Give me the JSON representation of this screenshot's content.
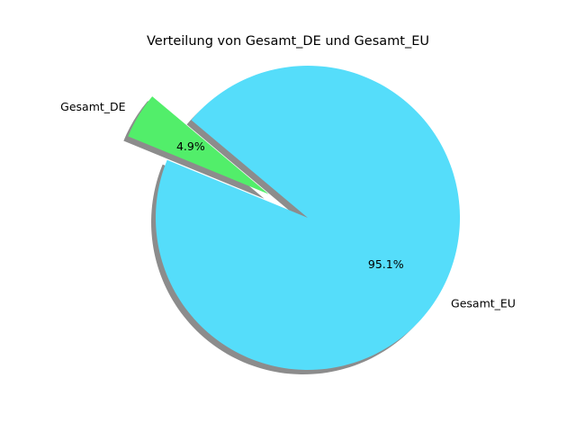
{
  "chart_data": {
    "type": "pie",
    "title": "Verteilung von Gesamt_DE und Gesamt_EU",
    "labels": [
      "Gesamt_DE",
      "Gesamt_EU"
    ],
    "values": [
      4.9,
      95.1
    ],
    "percent_labels": [
      "4.9%",
      "95.1%"
    ],
    "colors": [
      "#52ee6a",
      "#55ddfa"
    ],
    "explode": [
      0.3,
      0
    ],
    "shadow": true,
    "start_angle_deg": 140,
    "legend": "none"
  }
}
